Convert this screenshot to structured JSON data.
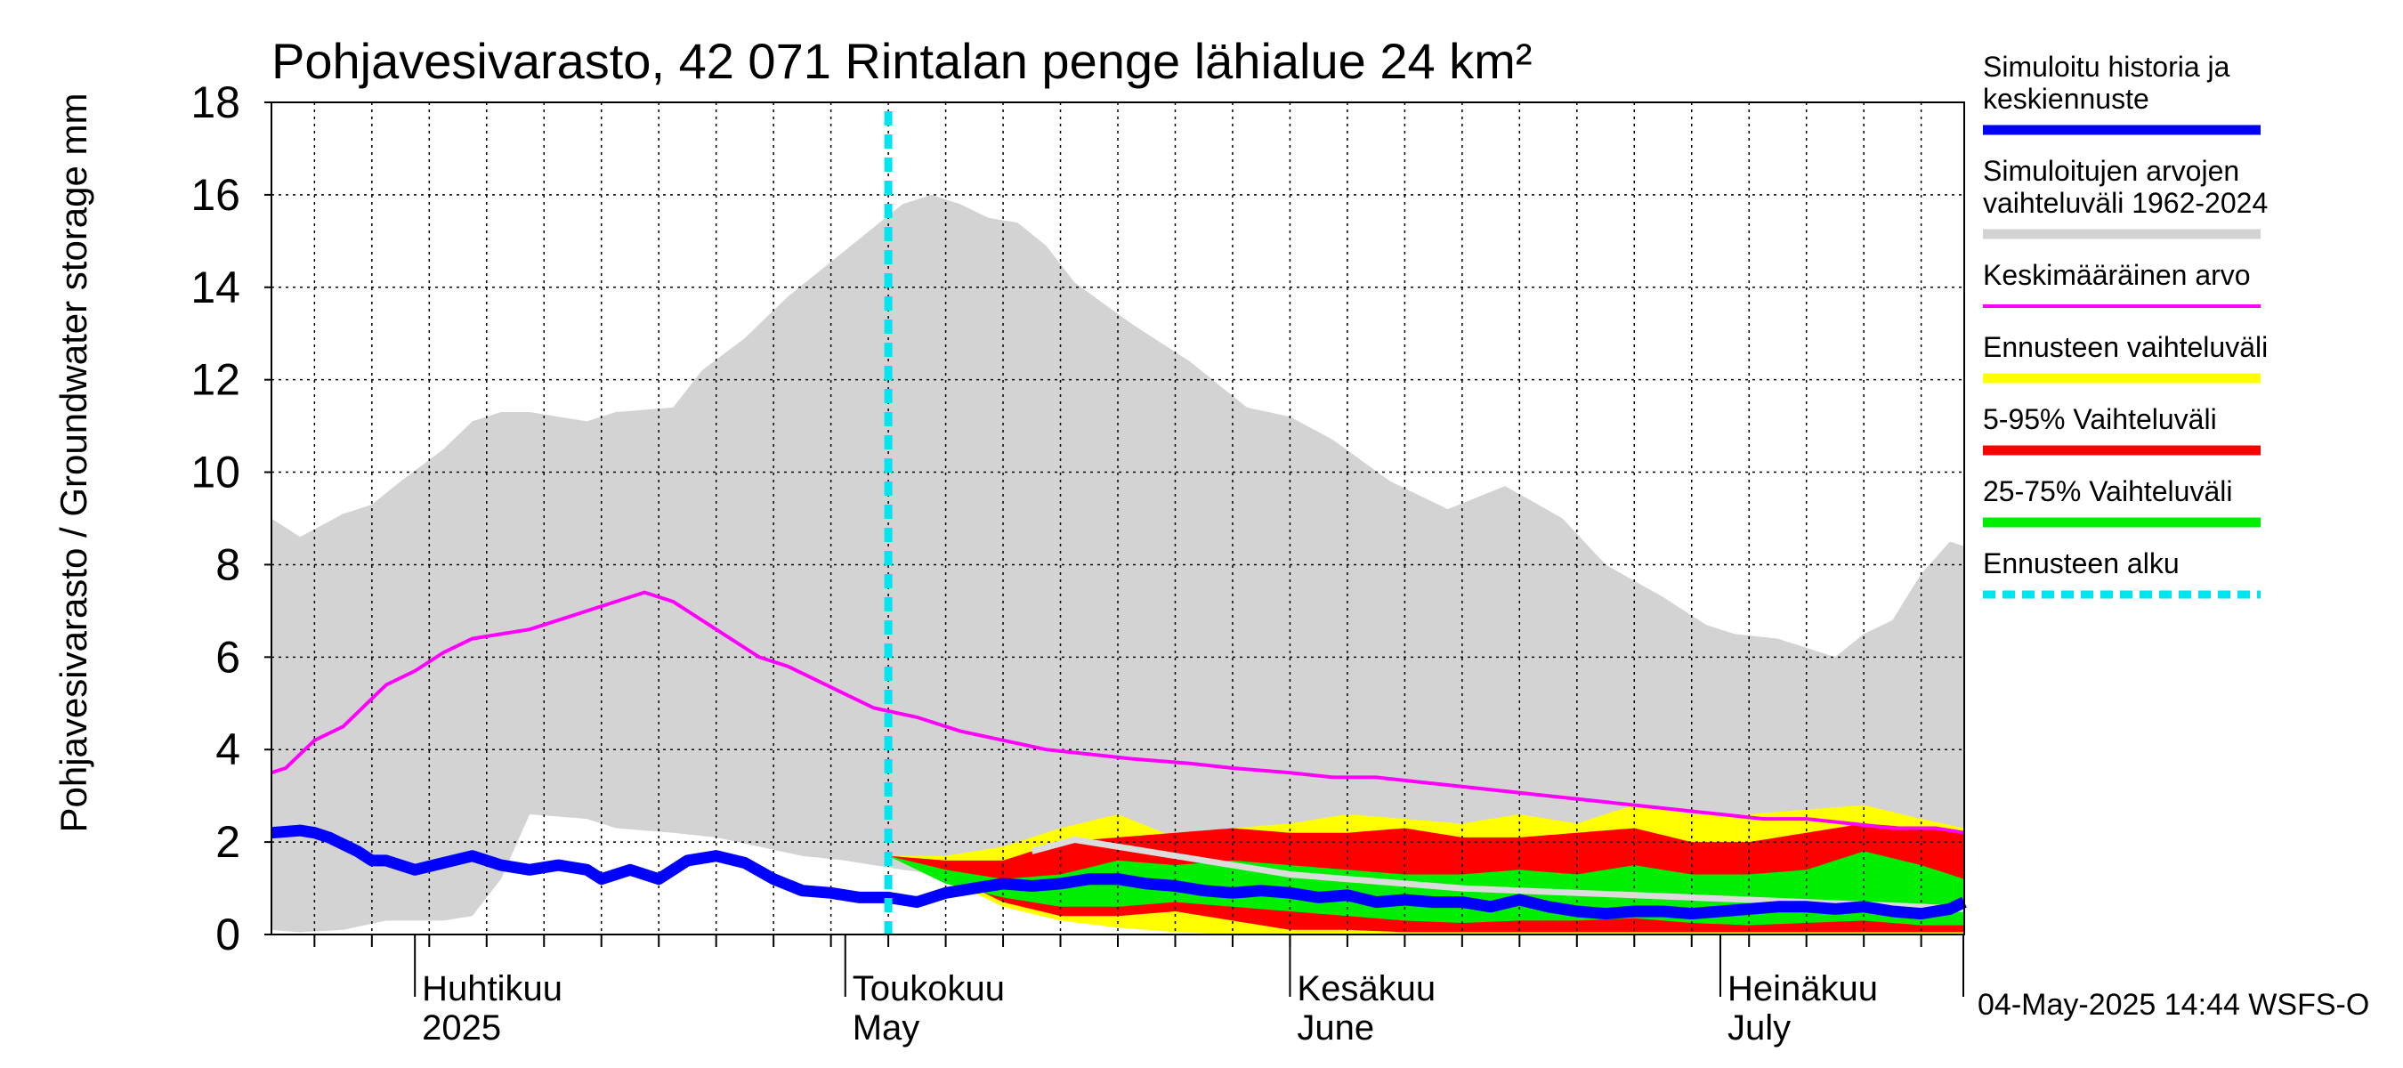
{
  "chart_data": {
    "type": "area",
    "title": "Pohjavesivarasto, 42 071 Rintalan penge lähialue 24 km²",
    "ylabel": "Pohjavesivarasto / Groundwater storage   mm",
    "ylim": [
      0,
      18
    ],
    "yticks": [
      "0",
      "2",
      "4",
      "6",
      "8",
      "10",
      "12",
      "14",
      "16",
      "18"
    ],
    "x_unit": "day of year",
    "xlim": [
      81,
      199
    ],
    "month_ticks": [
      91,
      121,
      152,
      182
    ],
    "month_labels": [
      {
        "day": 91,
        "fi": "Huhtikuu",
        "en": "2025"
      },
      {
        "day": 121,
        "fi": "Toukokuu",
        "en": "May"
      },
      {
        "day": 152,
        "fi": "Kesäkuu",
        "en": "June"
      },
      {
        "day": 182,
        "fi": "Heinäkuu",
        "en": "July"
      }
    ],
    "forecast_start_day": 124,
    "timestamp": "04-May-2025 14:44 WSFS-O",
    "legend": [
      {
        "label": "Simuloitu historia ja keskiennuste",
        "lines": [
          "Simuloitu historia ja",
          "keskiennuste"
        ],
        "color": "#0000ff",
        "style": "thick"
      },
      {
        "label": "Simuloitujen arvojen vaihteluväli 1962-2024",
        "lines": [
          "Simuloitujen arvojen",
          "vaihteluväli 1962-2024"
        ],
        "color": "#d3d3d3",
        "style": "band"
      },
      {
        "label": "Keskimääräinen arvo",
        "lines": [
          "Keskimääräinen arvo"
        ],
        "color": "#ff00ff",
        "style": "line"
      },
      {
        "label": "Ennusteen vaihteluväli",
        "lines": [
          "Ennusteen vaihteluväli"
        ],
        "color": "#ffff00",
        "style": "band"
      },
      {
        "label": "5-95% Vaihteluväli",
        "lines": [
          "5-95% Vaihteluväli"
        ],
        "color": "#ff0000",
        "style": "band"
      },
      {
        "label": "25-75% Vaihteluväli",
        "lines": [
          "25-75% Vaihteluväli"
        ],
        "color": "#00ee00",
        "style": "band"
      },
      {
        "label": "Ennusteen alku",
        "lines": [
          "Ennusteen alku"
        ],
        "color": "#00e5ee",
        "style": "dashed"
      }
    ],
    "colors": {
      "history_band": "#d3d3d3",
      "forecast_range": "#ffff00",
      "p5_95": "#ff0000",
      "p25_75": "#00ee00",
      "median_line": "#0000ff",
      "mean_line": "#ff00ff",
      "forecast_mean_hist": "#dcdcdc",
      "forecast_start": "#00e5ee"
    },
    "series": {
      "history_max": {
        "x": [
          81,
          83,
          86,
          88,
          90,
          93,
          95,
          97,
          99,
          103,
          105,
          109,
          111,
          114,
          117,
          121,
          123,
          125,
          127,
          129,
          131,
          133,
          135,
          137,
          141,
          145,
          149,
          152,
          155,
          159,
          163,
          167,
          171,
          174,
          178,
          181,
          183,
          186,
          190,
          192,
          194,
          196,
          198,
          199
        ],
        "y": [
          9.0,
          8.6,
          9.1,
          9.3,
          9.8,
          10.5,
          11.1,
          11.3,
          11.3,
          11.1,
          11.3,
          11.4,
          12.2,
          12.9,
          13.8,
          14.8,
          15.3,
          15.8,
          16.0,
          15.8,
          15.5,
          15.4,
          14.9,
          14.1,
          13.2,
          12.4,
          11.4,
          11.2,
          10.7,
          9.8,
          9.2,
          9.7,
          9.0,
          8.0,
          7.3,
          6.7,
          6.5,
          6.4,
          6.0,
          6.5,
          6.8,
          7.8,
          8.5,
          8.4
        ]
      },
      "history_min": {
        "x": [
          81,
          83,
          86,
          89,
          91,
          93,
          95,
          97,
          99,
          103,
          105,
          109,
          112,
          115,
          118,
          121,
          125,
          130,
          135,
          140,
          145,
          150,
          155,
          160,
          165,
          170,
          175,
          180,
          185,
          190,
          195,
          199
        ],
        "y": [
          0.1,
          0.05,
          0.1,
          0.3,
          0.3,
          0.3,
          0.4,
          1.2,
          2.6,
          2.5,
          2.3,
          2.2,
          2.1,
          1.9,
          1.7,
          1.6,
          1.4,
          1.2,
          1.1,
          1.0,
          0.9,
          0.9,
          0.8,
          0.8,
          0.7,
          0.7,
          0.6,
          0.6,
          0.5,
          0.5,
          0.5,
          0.4
        ]
      },
      "forecast_max": {
        "x": [
          124,
          128,
          132,
          136,
          140,
          144,
          148,
          152,
          156,
          160,
          164,
          168,
          172,
          176,
          180,
          184,
          188,
          192,
          196,
          199
        ],
        "y": [
          1.7,
          1.7,
          1.9,
          2.3,
          2.6,
          2.1,
          2.3,
          2.4,
          2.6,
          2.5,
          2.4,
          2.6,
          2.4,
          2.8,
          2.6,
          2.6,
          2.7,
          2.8,
          2.5,
          2.3
        ]
      },
      "forecast_min": {
        "x": [
          124,
          128,
          132,
          136,
          140,
          144,
          148,
          152,
          156,
          160,
          164,
          168,
          172,
          176,
          180,
          184,
          188,
          192,
          196,
          199
        ],
        "y": [
          1.7,
          1.2,
          0.6,
          0.3,
          0.15,
          0.05,
          0.0,
          0.0,
          0.0,
          0.0,
          0.0,
          0.0,
          0.0,
          0.0,
          0.0,
          0.0,
          0.0,
          0.0,
          0.0,
          0.0
        ]
      },
      "p95": {
        "x": [
          124,
          128,
          132,
          136,
          140,
          144,
          148,
          152,
          156,
          160,
          164,
          168,
          172,
          176,
          180,
          184,
          188,
          192,
          196,
          199
        ],
        "y": [
          1.7,
          1.6,
          1.6,
          2.0,
          2.1,
          2.2,
          2.3,
          2.2,
          2.2,
          2.3,
          2.1,
          2.1,
          2.2,
          2.3,
          2.0,
          2.0,
          2.2,
          2.4,
          2.3,
          2.2
        ]
      },
      "p5": {
        "x": [
          124,
          128,
          132,
          136,
          140,
          144,
          148,
          152,
          156,
          160,
          164,
          168,
          172,
          176,
          180,
          184,
          188,
          192,
          196,
          199
        ],
        "y": [
          1.7,
          1.3,
          0.7,
          0.4,
          0.4,
          0.5,
          0.3,
          0.1,
          0.1,
          0.05,
          0.05,
          0.05,
          0.05,
          0.05,
          0.05,
          0.05,
          0.05,
          0.05,
          0.05,
          0.05
        ]
      },
      "p75": {
        "x": [
          124,
          128,
          132,
          136,
          140,
          144,
          148,
          152,
          156,
          160,
          164,
          168,
          172,
          176,
          180,
          184,
          188,
          192,
          196,
          199
        ],
        "y": [
          1.7,
          1.4,
          1.2,
          1.3,
          1.6,
          1.5,
          1.6,
          1.5,
          1.4,
          1.3,
          1.3,
          1.4,
          1.3,
          1.5,
          1.3,
          1.3,
          1.4,
          1.8,
          1.5,
          1.2
        ]
      },
      "p25": {
        "x": [
          124,
          128,
          132,
          136,
          140,
          144,
          148,
          152,
          156,
          160,
          164,
          168,
          172,
          176,
          180,
          184,
          188,
          192,
          196,
          199
        ],
        "y": [
          1.7,
          1.1,
          0.8,
          0.6,
          0.6,
          0.7,
          0.6,
          0.5,
          0.4,
          0.3,
          0.25,
          0.3,
          0.3,
          0.35,
          0.25,
          0.2,
          0.25,
          0.3,
          0.2,
          0.2
        ]
      },
      "median": {
        "x": [
          81,
          83,
          84,
          85,
          87,
          88,
          89,
          91,
          93,
          95,
          97,
          99,
          101,
          103,
          104,
          106,
          108,
          110,
          112,
          114,
          116,
          118,
          120,
          122,
          124,
          126,
          128,
          130,
          132,
          134,
          136,
          138,
          140,
          142,
          144,
          146,
          148,
          150,
          152,
          154,
          156,
          158,
          160,
          162,
          164,
          166,
          168,
          170,
          172,
          174,
          176,
          178,
          180,
          182,
          184,
          186,
          188,
          190,
          192,
          194,
          196,
          198,
          199
        ],
        "y": [
          2.2,
          2.25,
          2.2,
          2.1,
          1.8,
          1.6,
          1.6,
          1.4,
          1.55,
          1.7,
          1.5,
          1.4,
          1.5,
          1.4,
          1.2,
          1.4,
          1.2,
          1.6,
          1.7,
          1.55,
          1.2,
          0.95,
          0.9,
          0.8,
          0.8,
          0.7,
          0.9,
          1.0,
          1.1,
          1.05,
          1.1,
          1.2,
          1.2,
          1.1,
          1.05,
          0.95,
          0.9,
          0.95,
          0.9,
          0.8,
          0.85,
          0.7,
          0.75,
          0.7,
          0.7,
          0.6,
          0.75,
          0.6,
          0.5,
          0.45,
          0.5,
          0.5,
          0.45,
          0.5,
          0.55,
          0.6,
          0.6,
          0.55,
          0.6,
          0.5,
          0.45,
          0.55,
          0.7
        ]
      },
      "mean": {
        "x": [
          81,
          82,
          84,
          86,
          88,
          89,
          91,
          93,
          95,
          97,
          99,
          101,
          103,
          105,
          107,
          109,
          111,
          113,
          115,
          117,
          119,
          121,
          123,
          126,
          129,
          132,
          135,
          138,
          141,
          145,
          148,
          152,
          155,
          158,
          161,
          164,
          167,
          170,
          173,
          176,
          179,
          182,
          185,
          188,
          191,
          194,
          197,
          199
        ],
        "y": [
          3.5,
          3.6,
          4.2,
          4.5,
          5.1,
          5.4,
          5.7,
          6.1,
          6.4,
          6.5,
          6.6,
          6.8,
          7.0,
          7.2,
          7.4,
          7.2,
          6.8,
          6.4,
          6.0,
          5.8,
          5.5,
          5.2,
          4.9,
          4.7,
          4.4,
          4.2,
          4.0,
          3.9,
          3.8,
          3.7,
          3.6,
          3.5,
          3.4,
          3.4,
          3.3,
          3.2,
          3.1,
          3.0,
          2.9,
          2.8,
          2.7,
          2.6,
          2.5,
          2.5,
          2.4,
          2.3,
          2.3,
          2.2
        ]
      },
      "forecast_mean_hist": {
        "x": [
          134,
          137,
          140,
          144,
          148,
          152,
          156,
          160,
          164,
          168,
          172,
          176,
          180,
          184,
          188,
          192,
          196,
          199
        ],
        "y": [
          1.8,
          2.05,
          1.9,
          1.7,
          1.5,
          1.3,
          1.2,
          1.1,
          1.0,
          0.95,
          0.9,
          0.85,
          0.8,
          0.75,
          0.7,
          0.65,
          0.6,
          0.55
        ]
      }
    }
  }
}
